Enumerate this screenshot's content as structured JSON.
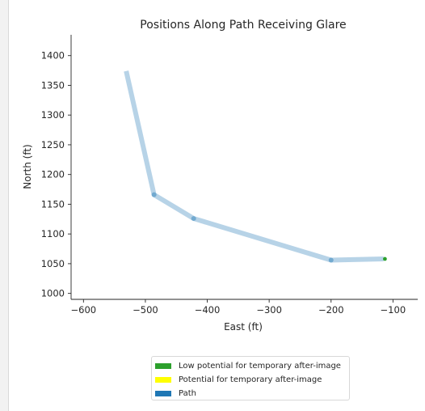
{
  "chart_data": {
    "type": "line",
    "title": "Positions Along Path Receiving Glare",
    "xlabel": "East (ft)",
    "ylabel": "North (ft)",
    "xlim": [
      -620,
      -60
    ],
    "ylim": [
      990,
      1435
    ],
    "xticks": [
      -600,
      -500,
      -400,
      -300,
      -200,
      -100
    ],
    "yticks": [
      1000,
      1050,
      1100,
      1150,
      1200,
      1250,
      1300,
      1350,
      1400
    ],
    "xtick_labels": [
      "−600",
      "−500",
      "−400",
      "−300",
      "−200",
      "−100"
    ],
    "ytick_labels": [
      "1000",
      "1050",
      "1100",
      "1150",
      "1200",
      "1250",
      "1300",
      "1350",
      "1400"
    ],
    "series": [
      {
        "name": "Path",
        "color": "#1f77b4",
        "x": [
          -531,
          -486,
          -422,
          -200,
          -115
        ],
        "y": [
          1374,
          1166,
          1126,
          1056,
          1058
        ]
      }
    ],
    "vertex_points": {
      "x": [
        -486,
        -422,
        -200
      ],
      "y": [
        1166,
        1126,
        1056
      ]
    },
    "glare_points": [
      {
        "x": -113,
        "y": 1058,
        "color": "#2ca02c"
      }
    ],
    "legend": {
      "position": "below",
      "entries": [
        {
          "label": "Low potential for temporary after-image",
          "color": "#2ca02c"
        },
        {
          "label": "Potential for temporary after-image",
          "color": "#ffff00"
        },
        {
          "label": "Path",
          "color": "#1f77b4"
        }
      ]
    },
    "grid": false
  }
}
